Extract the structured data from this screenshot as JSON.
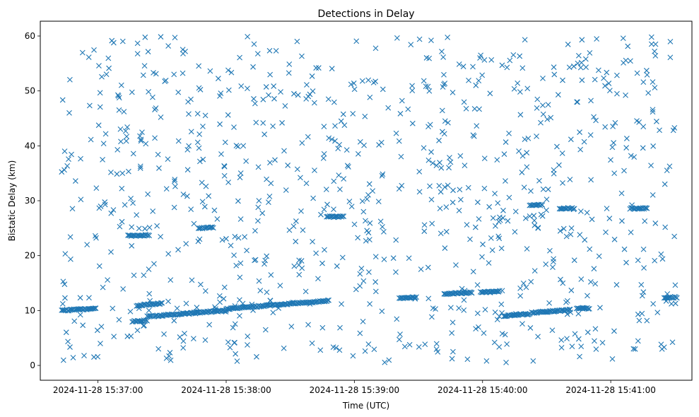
{
  "chart_data": {
    "type": "scatter",
    "title": "Detections in Delay",
    "xlabel": "Time (UTC)",
    "ylabel": "Bistatic Delay (km)",
    "x_ticks": [
      "2024-11-28 15:37:00",
      "2024-11-28 15:38:00",
      "2024-11-28 15:39:00",
      "2024-11-28 15:40:00",
      "2024-11-28 15:41:00"
    ],
    "y_ticks": [
      "0",
      "10",
      "20",
      "30",
      "40",
      "50",
      "60"
    ],
    "xlim": [
      "2024-11-28 15:36:33",
      "2024-11-28 15:41:38"
    ],
    "ylim": [
      -2.7,
      62.7
    ],
    "marker": "x",
    "color": "#1f77b4",
    "grid": false,
    "series": [
      {
        "tracks": [
          {
            "x_start": "2024-11-28 15:36:43",
            "x_end": "2024-11-28 15:36:59",
            "y_start": 10.0,
            "y_end": 10.4
          },
          {
            "x_start": "2024-11-28 15:37:16",
            "x_end": "2024-11-28 15:37:23",
            "y_start": 8.0,
            "y_end": 8.2
          },
          {
            "x_start": "2024-11-28 15:37:23",
            "x_end": "2024-11-28 15:37:47",
            "y_start": 8.9,
            "y_end": 9.6
          },
          {
            "x_start": "2024-11-28 15:37:45",
            "x_end": "2024-11-28 15:38:00",
            "y_start": 9.6,
            "y_end": 10.0
          },
          {
            "x_start": "2024-11-28 15:38:00",
            "x_end": "2024-11-28 15:38:48",
            "y_start": 10.3,
            "y_end": 11.8
          },
          {
            "x_start": "2024-11-28 15:37:18",
            "x_end": "2024-11-28 15:37:30",
            "y_start": 10.9,
            "y_end": 11.3
          },
          {
            "x_start": "2024-11-28 15:39:21",
            "x_end": "2024-11-28 15:39:29",
            "y_start": 12.3,
            "y_end": 12.4
          },
          {
            "x_start": "2024-11-28 15:39:42",
            "x_end": "2024-11-28 15:39:55",
            "y_start": 13.0,
            "y_end": 13.3
          },
          {
            "x_start": "2024-11-28 15:39:59",
            "x_end": "2024-11-28 15:40:08",
            "y_start": 13.4,
            "y_end": 13.5
          },
          {
            "x_start": "2024-11-28 15:40:10",
            "x_end": "2024-11-28 15:40:22",
            "y_start": 9.0,
            "y_end": 9.4
          },
          {
            "x_start": "2024-11-28 15:40:23",
            "x_end": "2024-11-28 15:40:41",
            "y_start": 9.6,
            "y_end": 10.1
          },
          {
            "x_start": "2024-11-28 15:40:44",
            "x_end": "2024-11-28 15:40:50",
            "y_start": 10.4,
            "y_end": 10.4
          },
          {
            "x_start": "2024-11-28 15:41:25",
            "x_end": "2024-11-28 15:41:31",
            "y_start": 12.4,
            "y_end": 12.4
          },
          {
            "x_start": "2024-11-28 15:37:14",
            "x_end": "2024-11-28 15:37:24",
            "y_start": 23.6,
            "y_end": 23.7
          },
          {
            "x_start": "2024-11-28 15:37:47",
            "x_end": "2024-11-28 15:37:54",
            "y_start": 25.0,
            "y_end": 25.1
          },
          {
            "x_start": "2024-11-28 15:38:47",
            "x_end": "2024-11-28 15:38:55",
            "y_start": 27.1,
            "y_end": 27.1
          },
          {
            "x_start": "2024-11-28 15:40:22",
            "x_end": "2024-11-28 15:40:28",
            "y_start": 29.2,
            "y_end": 29.2
          },
          {
            "x_start": "2024-11-28 15:40:36",
            "x_end": "2024-11-28 15:40:43",
            "y_start": 28.6,
            "y_end": 28.6
          },
          {
            "x_start": "2024-11-28 15:41:09",
            "x_end": "2024-11-28 15:41:17",
            "y_start": 28.6,
            "y_end": 28.6
          }
        ],
        "noise": {
          "x_range": [
            "2024-11-28 15:36:43",
            "2024-11-28 15:41:31"
          ],
          "y_range": [
            0.5,
            60.0
          ]
        }
      }
    ]
  }
}
